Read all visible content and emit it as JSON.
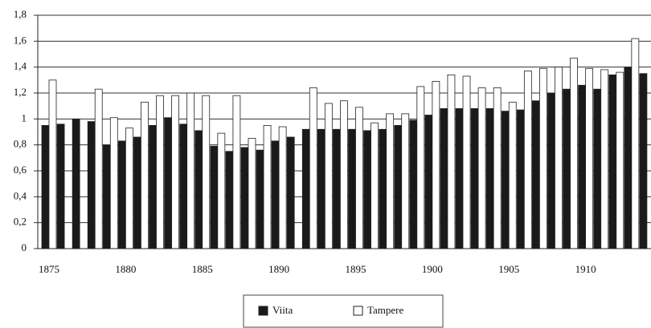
{
  "chart_data": {
    "type": "bar",
    "categories": [
      "1875",
      null,
      null,
      null,
      null,
      "1880",
      null,
      null,
      null,
      null,
      "1885",
      null,
      null,
      null,
      null,
      "1890",
      null,
      null,
      null,
      null,
      "1895",
      null,
      null,
      null,
      null,
      "1900",
      null,
      null,
      null,
      null,
      "1905",
      null,
      null,
      null,
      null,
      "1910",
      null,
      null,
      null,
      null
    ],
    "series": [
      {
        "name": "Viita",
        "color": "#1a1a1a",
        "values": [
          0.95,
          0.96,
          1.0,
          0.98,
          0.8,
          0.83,
          0.86,
          0.95,
          1.01,
          0.96,
          0.91,
          0.79,
          0.75,
          0.78,
          0.76,
          0.83,
          0.86,
          0.92,
          0.92,
          0.92,
          0.92,
          0.91,
          0.92,
          0.95,
          0.99,
          1.03,
          1.08,
          1.08,
          1.08,
          1.08,
          1.06,
          1.07,
          1.14,
          1.2,
          1.23,
          1.26,
          1.23,
          1.34,
          1.4,
          1.35
        ]
      },
      {
        "name": "Tampere",
        "color": "#ffffff",
        "values": [
          1.3,
          null,
          null,
          1.23,
          1.01,
          0.93,
          1.13,
          1.18,
          1.18,
          1.2,
          1.18,
          0.89,
          1.18,
          0.85,
          0.95,
          0.94,
          null,
          1.24,
          1.12,
          1.14,
          1.09,
          0.97,
          1.04,
          1.04,
          1.25,
          1.29,
          1.34,
          1.33,
          1.24,
          1.24,
          1.13,
          1.37,
          1.39,
          1.4,
          1.47,
          1.39,
          1.38,
          1.36,
          1.62,
          null
        ]
      }
    ],
    "ylim": [
      0,
      1.8
    ],
    "yticks": [
      0,
      {
        "value": 0.2,
        "label": "0,2"
      },
      {
        "value": 0.4,
        "label": "0,4"
      },
      {
        "value": 0.6,
        "label": "0,6"
      },
      {
        "value": 0.8,
        "label": "0,8"
      },
      1,
      {
        "value": 1.2,
        "label": "1,2"
      },
      {
        "value": 1.4,
        "label": "1,4"
      },
      {
        "value": 1.6,
        "label": "1,6"
      },
      {
        "value": 1.8,
        "label": "1,8"
      }
    ],
    "grid": true,
    "legend": "bottom"
  }
}
